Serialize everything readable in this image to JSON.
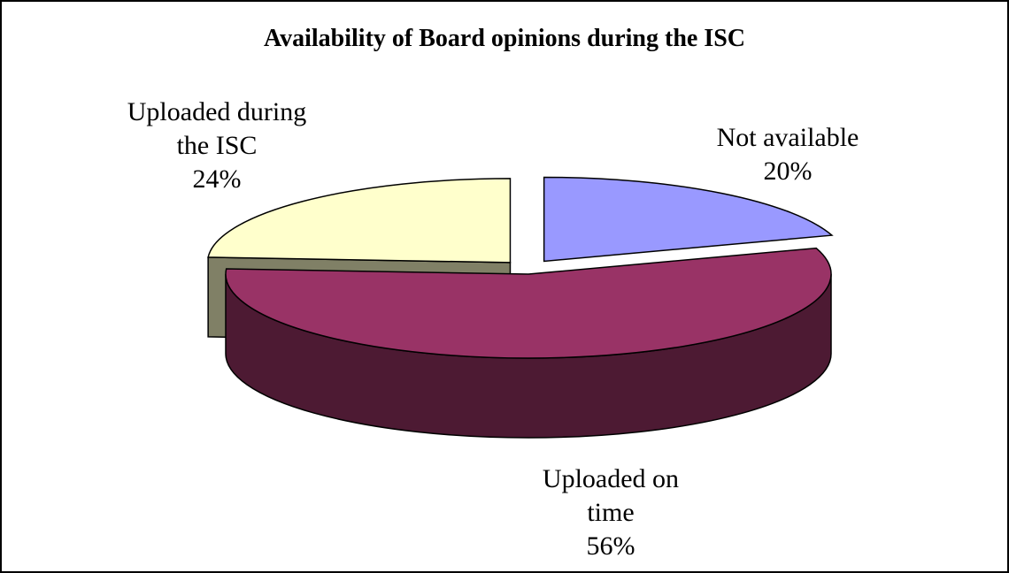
{
  "chart_data": {
    "type": "pie",
    "title": "Availability of Board opinions during the ISC",
    "categories": [
      "Not available",
      "Uploaded on time",
      "Uploaded during the ISC"
    ],
    "values": [
      20,
      56,
      24
    ],
    "value_labels": [
      "20%",
      "56%",
      "24%"
    ],
    "colors": [
      "#9999ff",
      "#993366",
      "#ffffcc"
    ]
  }
}
